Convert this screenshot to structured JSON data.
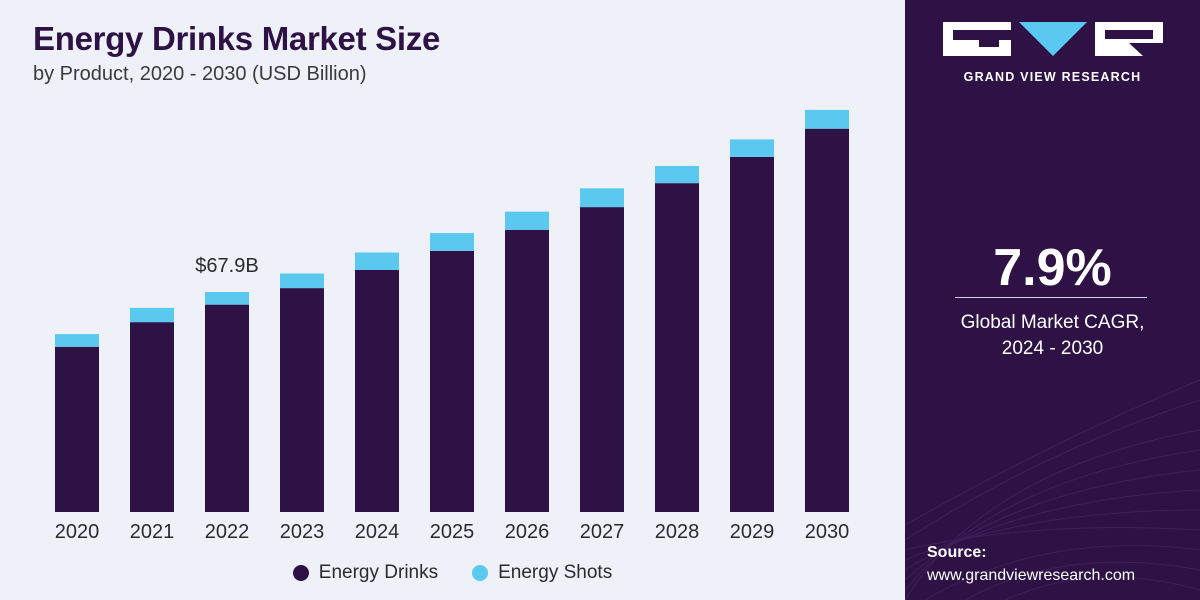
{
  "header": {
    "title": "Energy Drinks Market Size",
    "subtitle": "by Product, 2020 - 2030 (USD Billion)"
  },
  "brand": {
    "name": "GRAND VIEW RESEARCH"
  },
  "stat": {
    "value": "7.9%",
    "label_line1": "Global Market CAGR,",
    "label_line2": "2024 - 2030"
  },
  "source": {
    "label": "Source:",
    "url": "www.grandviewresearch.com"
  },
  "colors": {
    "energy_drinks": "#2e1245",
    "energy_shots": "#5bc8f0",
    "side_panel": "#2e1245",
    "background": "#eef2f8"
  },
  "chart_data": {
    "type": "bar",
    "stacked": true,
    "title": "Energy Drinks Market Size",
    "subtitle": "by Product, 2020 - 2030 (USD Billion)",
    "categories": [
      "2020",
      "2021",
      "2022",
      "2023",
      "2024",
      "2025",
      "2026",
      "2027",
      "2028",
      "2029",
      "2030"
    ],
    "series": [
      {
        "name": "Energy Drinks",
        "values": [
          51.0,
          58.6,
          64.0,
          69.1,
          74.7,
          80.6,
          87.1,
          94.1,
          101.5,
          109.6,
          118.3
        ]
      },
      {
        "name": "Energy Shots",
        "values": [
          3.9,
          4.4,
          3.9,
          4.5,
          5.4,
          5.5,
          5.6,
          5.8,
          5.3,
          5.4,
          5.8
        ]
      }
    ],
    "annotations": [
      {
        "category": "2022",
        "text": "$67.9B"
      }
    ],
    "ylim": [
      0,
      125
    ],
    "grid": false,
    "legend_position": "bottom"
  }
}
